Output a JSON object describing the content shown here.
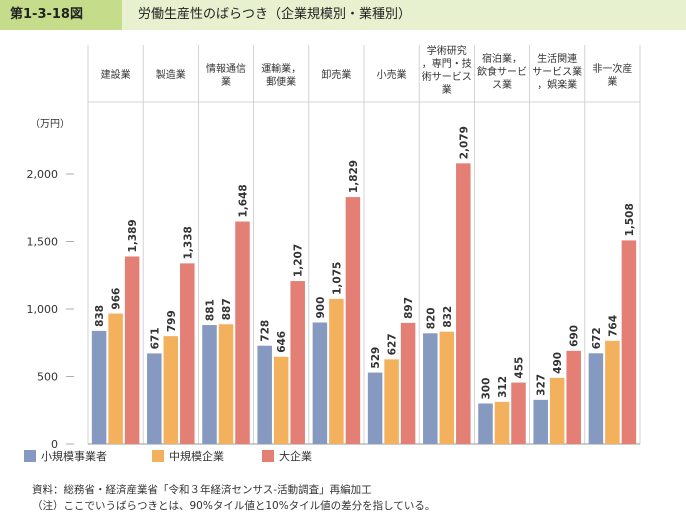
{
  "header": {
    "figure_number": "第1-3-18図",
    "title": "労働生産性のばらつき（企業規模別・業種別）"
  },
  "colors": {
    "small": "#8599c1",
    "medium": "#f3b15e",
    "large": "#e37f74",
    "header_bg": "#e7f1cf",
    "header_label_bg": "#c5dd8b"
  },
  "chart_data": {
    "type": "bar",
    "ylabel": "（万円）",
    "ylim": [
      0,
      2300
    ],
    "yticks": [
      "0",
      "500",
      "1,000",
      "1,500",
      "2,000"
    ],
    "categories": [
      [
        "建設業"
      ],
      [
        "製造業"
      ],
      [
        "情報通信",
        "業"
      ],
      [
        "運輸業，",
        "郵便業"
      ],
      [
        "卸売業"
      ],
      [
        "小売業"
      ],
      [
        "学術研究",
        "，専門・技",
        "術サービス",
        "業"
      ],
      [
        "宿泊業，",
        "飲食サービ",
        "ス業"
      ],
      [
        "生活関連",
        "サービス業",
        "，娯楽業"
      ],
      [
        "非一次産",
        "業"
      ]
    ],
    "series": [
      {
        "name": "小規模事業者",
        "values": [
          838,
          671,
          881,
          728,
          900,
          529,
          820,
          300,
          327,
          672
        ],
        "labels": [
          "838",
          "671",
          "881",
          "728",
          "900",
          "529",
          "820",
          "300",
          "327",
          "672"
        ]
      },
      {
        "name": "中規模企業",
        "values": [
          966,
          799,
          887,
          646,
          1075,
          627,
          832,
          312,
          490,
          764
        ],
        "labels": [
          "966",
          "799",
          "887",
          "646",
          "1,075",
          "627",
          "832",
          "312",
          "490",
          "764"
        ]
      },
      {
        "name": "大企業",
        "values": [
          1389,
          1338,
          1648,
          1207,
          1829,
          897,
          2079,
          455,
          690,
          1508
        ],
        "labels": [
          "1,389",
          "1,338",
          "1,648",
          "1,207",
          "1,829",
          "897",
          "2,079",
          "455",
          "690",
          "1,508"
        ]
      }
    ],
    "legend_position": "bottom-left"
  },
  "footer": {
    "source": "資料：総務省・経済産業省「令和３年経済センサス-活動調査」再編加工",
    "note": "（注）ここでいうばらつきとは、90%タイル値と10%タイル値の差分を指している。"
  }
}
